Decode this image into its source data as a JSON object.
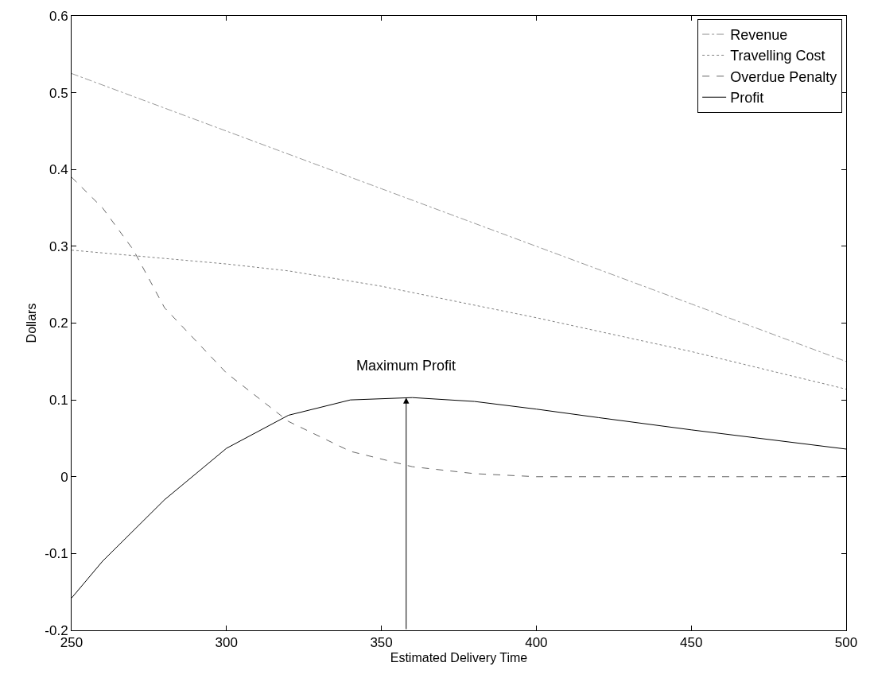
{
  "chart_data": {
    "type": "line",
    "xlabel": "Estimated Delivery Time",
    "ylabel": "Dollars",
    "xlim": [
      250,
      500
    ],
    "xticks": [
      250,
      300,
      350,
      400,
      450,
      500
    ],
    "ylim": [
      -0.2,
      0.6
    ],
    "yticks": [
      -0.2,
      -0.1,
      0,
      0.1,
      0.2,
      0.3,
      0.4,
      0.5,
      0.6
    ],
    "legend": "top right",
    "marker": "none",
    "annotations": [
      {
        "text": "Maximum Profit",
        "x": 358,
        "y": 0.103
      }
    ],
    "series": [
      {
        "name": "Revenue",
        "color": "#999999",
        "line_style": "dashdot",
        "x": [
          250,
          300,
          350,
          400,
          450,
          500
        ],
        "values": [
          0.525,
          0.45,
          0.375,
          0.3,
          0.225,
          0.15
        ]
      },
      {
        "name": "Travelling Cost",
        "color": "#808080",
        "line_style": "dotted",
        "x": [
          250,
          300,
          320,
          350,
          400,
          450,
          500
        ],
        "values": [
          0.295,
          0.277,
          0.268,
          0.248,
          0.207,
          0.163,
          0.114
        ]
      },
      {
        "name": "Overdue Penalty",
        "color": "#666666",
        "line_style": "dashed",
        "x": [
          250,
          260,
          270,
          280,
          300,
          320,
          340,
          360,
          380,
          400,
          450,
          500
        ],
        "values": [
          0.39,
          0.35,
          0.295,
          0.22,
          0.135,
          0.072,
          0.033,
          0.013,
          0.004,
          0.0,
          0.0,
          0.0
        ]
      },
      {
        "name": "Profit",
        "color": "#000000",
        "line_style": "solid",
        "x": [
          250,
          260,
          280,
          300,
          320,
          340,
          360,
          380,
          400,
          420,
          450,
          500
        ],
        "values": [
          -0.158,
          -0.11,
          -0.03,
          0.037,
          0.08,
          0.1,
          0.103,
          0.098,
          0.088,
          0.077,
          0.061,
          0.036
        ]
      }
    ]
  }
}
